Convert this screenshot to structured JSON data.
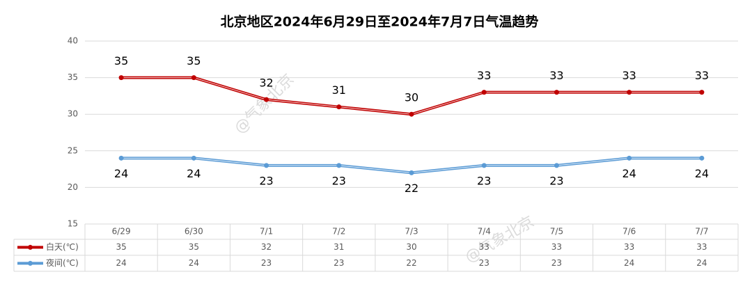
{
  "chart_data": {
    "type": "line",
    "title": "北京地区2024年6月29日至2024年7月7日气温趋势",
    "categories": [
      "6/29",
      "6/30",
      "7/1",
      "7/2",
      "7/3",
      "7/4",
      "7/5",
      "7/6",
      "7/7"
    ],
    "series": [
      {
        "name": "白天(℃)",
        "color": "#c00000",
        "values": [
          35,
          35,
          32,
          31,
          30,
          33,
          33,
          33,
          33
        ]
      },
      {
        "name": "夜间(℃)",
        "color": "#5b9bd5",
        "values": [
          24,
          24,
          23,
          23,
          22,
          23,
          23,
          24,
          24
        ]
      }
    ],
    "ylim": [
      15,
      40
    ],
    "yticks": [
      15,
      20,
      25,
      30,
      35,
      40
    ],
    "grid": true,
    "data_table": true,
    "watermark": "@气象北京"
  }
}
